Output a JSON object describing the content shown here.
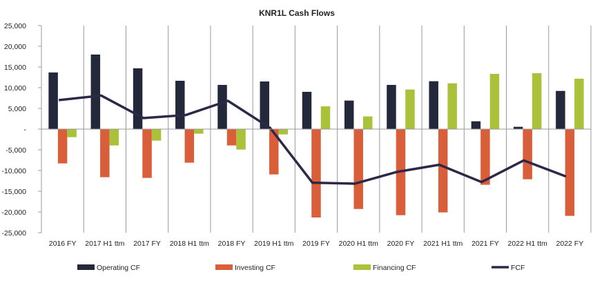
{
  "chart_data": {
    "type": "bar",
    "title": "KNR1L Cash Flows",
    "xlabel": "",
    "ylabel": "",
    "ylim": [
      -25000,
      25000
    ],
    "yticks": [
      25000,
      20000,
      15000,
      10000,
      5000,
      0,
      -5000,
      -10000,
      -15000,
      -20000,
      -25000
    ],
    "ytick_labels": [
      "25,000",
      "20,000",
      "15,000",
      "10,000",
      "5,000",
      "-",
      "-5,000",
      "-10,000",
      "-15,000",
      "-20,000",
      "-25,000"
    ],
    "categories": [
      "2016 FY",
      "2017 H1 ttm",
      "2017 FY",
      "2018 H1 ttm",
      "2018 FY",
      "2019 H1 ttm",
      "2019 FY",
      "2020 H1 ttm",
      "2020 FY",
      "2021 H1 ttm",
      "2021 FY",
      "2022 H1 ttm",
      "2022 FY"
    ],
    "series": [
      {
        "name": "Operating CF",
        "kind": "bar",
        "color": "#23293b",
        "values": [
          13670,
          18000,
          14670,
          11670,
          10670,
          11500,
          9000,
          6890,
          10670,
          11560,
          1890,
          560,
          9220
        ]
      },
      {
        "name": "Investing CF",
        "kind": "bar",
        "color": "#d95f3b",
        "values": [
          -8280,
          -11610,
          -11780,
          -8110,
          -3940,
          -10940,
          -21330,
          -19280,
          -20780,
          -20110,
          -13440,
          -12110,
          -20940
        ]
      },
      {
        "name": "Financing CF",
        "kind": "bar",
        "color": "#a9c23a",
        "values": [
          -1940,
          -3940,
          -2780,
          -1110,
          -4940,
          -1280,
          5500,
          3060,
          9560,
          11060,
          13330,
          13500,
          12170
        ]
      },
      {
        "name": "FCF",
        "kind": "line",
        "color": "#2e2848",
        "values": [
          7000,
          8110,
          2670,
          3390,
          6830,
          280,
          -12940,
          -13170,
          -10330,
          -8610,
          -12780,
          -7560,
          -11440
        ]
      }
    ],
    "legend": "bottom",
    "grid": "vertical category separators"
  }
}
